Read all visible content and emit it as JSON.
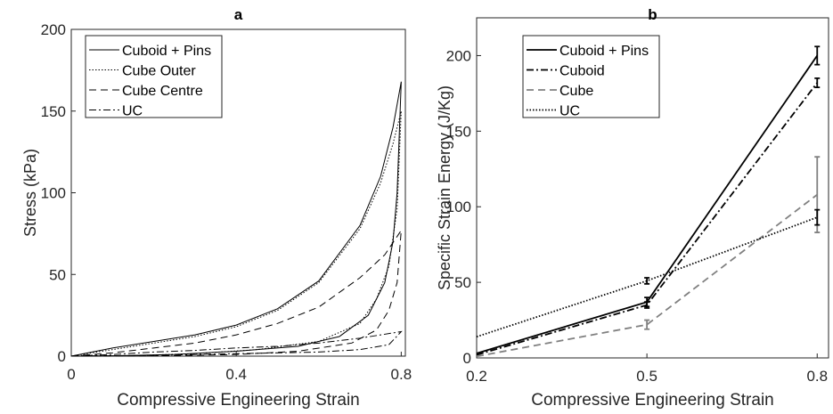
{
  "chart_data": [
    {
      "type": "line",
      "title": "a",
      "x_label": "Compressive Engineering Strain",
      "y_label": "Stress (kPa)",
      "xlim": [
        0,
        0.81
      ],
      "ylim": [
        0,
        200
      ],
      "xticks": [
        0,
        0.4,
        0.8
      ],
      "yticks": [
        0,
        50,
        100,
        150,
        200
      ],
      "legend": "upper-left",
      "series": [
        {
          "name": "Cuboid + Pins",
          "color": "#000000",
          "style": "solid",
          "x": [
            0,
            0.1,
            0.2,
            0.3,
            0.4,
            0.5,
            0.6,
            0.7,
            0.75,
            0.78,
            0.8,
            0.79,
            0.78,
            0.76,
            0.72,
            0.65,
            0.55,
            0.4,
            0.25,
            0.1,
            0
          ],
          "values": [
            0,
            5,
            9,
            13,
            19,
            29,
            46,
            80,
            110,
            140,
            168,
            100,
            70,
            45,
            25,
            12,
            6,
            3,
            1,
            0.2,
            0
          ]
        },
        {
          "name": "Cube Outer",
          "color": "#000000",
          "style": "dotted",
          "x": [
            0,
            0.1,
            0.2,
            0.3,
            0.4,
            0.5,
            0.6,
            0.7,
            0.75,
            0.78,
            0.8,
            0.79,
            0.77,
            0.74,
            0.7,
            0.6,
            0.45,
            0.3,
            0.15,
            0
          ],
          "values": [
            0,
            4,
            8,
            12,
            18,
            28,
            45,
            78,
            106,
            130,
            150,
            90,
            55,
            35,
            20,
            9,
            4,
            1.5,
            0.3,
            0
          ]
        },
        {
          "name": "Cube Centre",
          "color": "#000000",
          "style": "dashed",
          "x": [
            0,
            0.1,
            0.2,
            0.3,
            0.4,
            0.5,
            0.6,
            0.7,
            0.76,
            0.8,
            0.79,
            0.77,
            0.74,
            0.68,
            0.55,
            0.4,
            0.2,
            0
          ],
          "values": [
            0,
            2,
            5,
            8,
            13,
            20,
            30,
            48,
            62,
            77,
            45,
            28,
            16,
            8,
            3,
            1,
            0.2,
            0
          ]
        },
        {
          "name": "UC",
          "color": "#000000",
          "style": "dashdot",
          "x": [
            0,
            0.1,
            0.2,
            0.3,
            0.4,
            0.5,
            0.6,
            0.7,
            0.8,
            0.77,
            0.7,
            0.6,
            0.4,
            0.2,
            0
          ],
          "values": [
            0,
            1,
            2.5,
            3.5,
            5,
            6,
            8,
            11,
            15,
            7,
            4,
            2.5,
            1.5,
            0.5,
            0
          ]
        }
      ]
    },
    {
      "type": "errorline",
      "title": "b",
      "x_label": "Compressive Engineering Strain",
      "y_label": "Specific Strain Energy (J/Kg)",
      "xlim": [
        0.2,
        0.82
      ],
      "ylim": [
        0,
        225
      ],
      "xticks": [
        0.2,
        0.5,
        0.8
      ],
      "yticks": [
        0,
        50,
        100,
        150,
        200
      ],
      "legend": "upper-left",
      "x": [
        0.2,
        0.5,
        0.8
      ],
      "series": [
        {
          "name": "Cuboid + Pins",
          "color": "#000000",
          "style": "solid",
          "values": [
            3,
            37,
            200
          ],
          "errors": [
            0,
            3,
            6
          ]
        },
        {
          "name": "Cuboid",
          "color": "#000000",
          "style": "dashdot",
          "values": [
            2,
            35,
            182
          ],
          "errors": [
            0,
            2,
            3
          ]
        },
        {
          "name": "Cube",
          "color": "#808080",
          "style": "dashed",
          "values": [
            1,
            22,
            108
          ],
          "errors": [
            0,
            3,
            25
          ]
        },
        {
          "name": "UC",
          "color": "#000000",
          "style": "dotted",
          "values": [
            14,
            51,
            93
          ],
          "errors": [
            0,
            2,
            5
          ]
        }
      ]
    }
  ]
}
